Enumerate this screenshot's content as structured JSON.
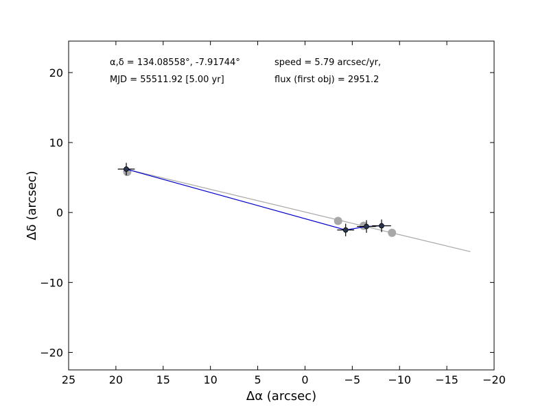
{
  "chart_data": {
    "type": "scatter",
    "xlabel": "Δα (arcsec)",
    "ylabel": "Δδ (arcsec)",
    "xlim": [
      25,
      -20
    ],
    "ylim": [
      -22.5,
      24.5
    ],
    "xticks": [
      25,
      20,
      15,
      10,
      5,
      0,
      -5,
      -10,
      -15,
      -20
    ],
    "xtick_labels": [
      "25",
      "20",
      "15",
      "10",
      "5",
      "0",
      "−5",
      "−10",
      "−15",
      "−20"
    ],
    "yticks": [
      20,
      10,
      0,
      -10,
      -20
    ],
    "ytick_labels": [
      "20",
      "10",
      "0",
      "−10",
      "−20"
    ],
    "grid": false,
    "annotations": [
      "α,δ = 134.08558°, -7.91744°",
      "MJD = 55511.92 [5.00 yr]",
      "speed = 5.79 arcsec/yr,",
      "flux (first obj) = 2951.2"
    ],
    "series": [
      {
        "role": "predicted",
        "color": "#a8a8a8",
        "x": [
          18.8,
          -3.5,
          -6.2,
          -9.2
        ],
        "y": [
          5.8,
          -1.2,
          -1.9,
          -2.9
        ]
      },
      {
        "role": "fit-line",
        "color": "#a8a8a8",
        "x": [
          18.3,
          -17.5
        ],
        "y": [
          6.0,
          -5.6
        ]
      },
      {
        "role": "observed",
        "color": "#000000",
        "point_fill": "#2a3550",
        "line_color": "#0000cc",
        "x": [
          18.9,
          -4.3,
          -6.5,
          -8.1
        ],
        "y": [
          6.2,
          -2.5,
          -2.0,
          -1.9
        ],
        "xerr": [
          0.9,
          0.9,
          1.0,
          1.0
        ],
        "yerr": [
          0.9,
          0.9,
          0.9,
          0.9
        ]
      }
    ]
  }
}
